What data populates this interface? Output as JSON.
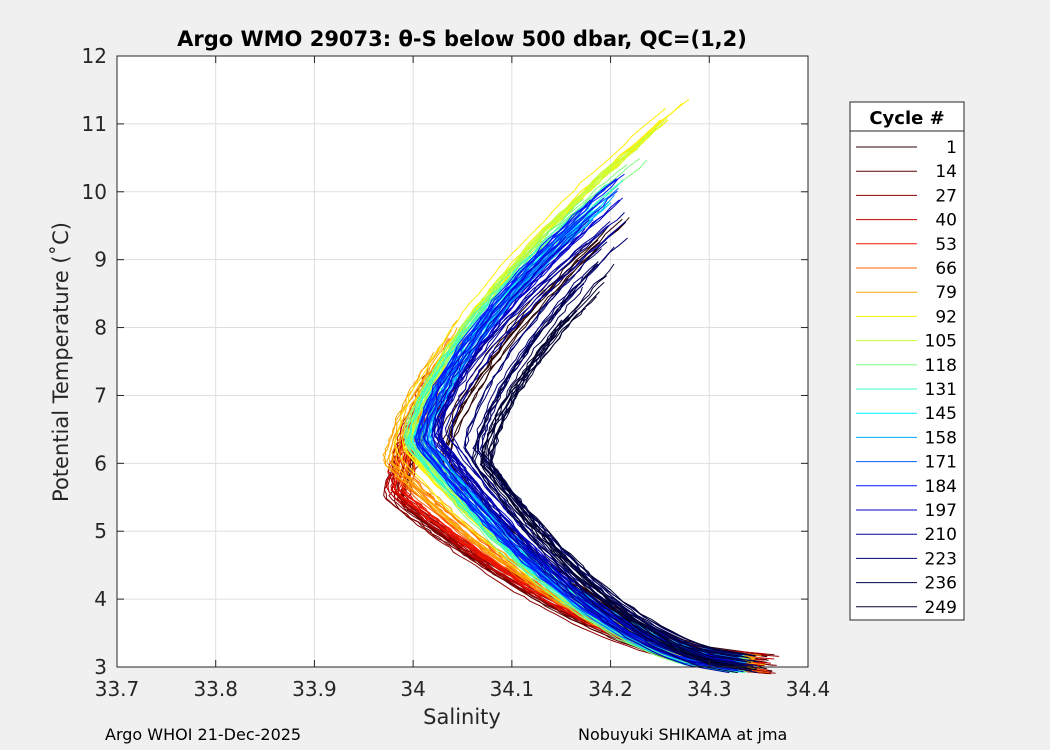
{
  "chart_data": {
    "type": "line",
    "title": "Argo WMO 29073: θ-S below 500 dbar,  QC=(1,2)",
    "xlabel": "Salinity",
    "ylabel": "Potential Temperature (˚C)",
    "xlim": [
      33.7,
      34.4
    ],
    "ylim": [
      3,
      12
    ],
    "x_ticks": [
      "33.7",
      "33.8",
      "33.9",
      "34",
      "34.1",
      "34.2",
      "34.3",
      "34.4"
    ],
    "y_ticks": [
      "3",
      "4",
      "5",
      "6",
      "7",
      "8",
      "9",
      "10",
      "11",
      "12"
    ],
    "grid": true,
    "legend_title": "Cycle #",
    "legend_position": "right",
    "series": [
      {
        "name": "1",
        "color": "#2a0000",
        "profile": {
          "s_deep": 34.36,
          "s_min": 34.03,
          "t_min_s": 6.0,
          "s_warm": 34.22,
          "t_top": 9.7
        }
      },
      {
        "name": "14",
        "color": "#5a0000",
        "profile": {
          "s_deep": 34.36,
          "s_min": 33.99,
          "t_min_s": 5.4,
          "s_warm": 34.05,
          "t_top": 7.4
        }
      },
      {
        "name": "27",
        "color": "#8a0000",
        "profile": {
          "s_deep": 34.36,
          "s_min": 33.98,
          "t_min_s": 5.5,
          "s_warm": 34.03,
          "t_top": 7.2
        }
      },
      {
        "name": "40",
        "color": "#c00000",
        "profile": {
          "s_deep": 34.36,
          "s_min": 33.98,
          "t_min_s": 5.6,
          "s_warm": 34.03,
          "t_top": 7.6
        }
      },
      {
        "name": "53",
        "color": "#f01800",
        "profile": {
          "s_deep": 34.35,
          "s_min": 33.99,
          "t_min_s": 5.6,
          "s_warm": 34.04,
          "t_top": 7.8
        }
      },
      {
        "name": "66",
        "color": "#ff6000",
        "profile": {
          "s_deep": 34.35,
          "s_min": 33.99,
          "t_min_s": 5.8,
          "s_warm": 34.05,
          "t_top": 8.0
        }
      },
      {
        "name": "79",
        "color": "#ffa800",
        "profile": {
          "s_deep": 34.35,
          "s_min": 33.98,
          "t_min_s": 6.0,
          "s_warm": 34.06,
          "t_top": 8.2
        }
      },
      {
        "name": "92",
        "color": "#fff000",
        "profile": {
          "s_deep": 34.34,
          "s_min": 33.99,
          "t_min_s": 6.2,
          "s_warm": 34.28,
          "t_top": 11.4
        }
      },
      {
        "name": "105",
        "color": "#c8ff38",
        "profile": {
          "s_deep": 34.34,
          "s_min": 34.0,
          "t_min_s": 6.3,
          "s_warm": 34.27,
          "t_top": 11.2
        }
      },
      {
        "name": "118",
        "color": "#80ff80",
        "profile": {
          "s_deep": 34.33,
          "s_min": 34.0,
          "t_min_s": 6.3,
          "s_warm": 34.24,
          "t_top": 10.6
        }
      },
      {
        "name": "131",
        "color": "#38ffc8",
        "profile": {
          "s_deep": 34.33,
          "s_min": 34.0,
          "t_min_s": 6.3,
          "s_warm": 34.23,
          "t_top": 10.4
        }
      },
      {
        "name": "145",
        "color": "#00f0ff",
        "profile": {
          "s_deep": 34.33,
          "s_min": 34.01,
          "t_min_s": 6.3,
          "s_warm": 34.22,
          "t_top": 10.2
        }
      },
      {
        "name": "158",
        "color": "#00a8ff",
        "profile": {
          "s_deep": 34.33,
          "s_min": 34.01,
          "t_min_s": 6.3,
          "s_warm": 34.22,
          "t_top": 10.2
        }
      },
      {
        "name": "171",
        "color": "#0060ff",
        "profile": {
          "s_deep": 34.33,
          "s_min": 34.01,
          "t_min_s": 6.3,
          "s_warm": 34.22,
          "t_top": 10.2
        }
      },
      {
        "name": "184",
        "color": "#0018ff",
        "profile": {
          "s_deep": 34.33,
          "s_min": 34.01,
          "t_min_s": 6.3,
          "s_warm": 34.22,
          "t_top": 10.3
        }
      },
      {
        "name": "197",
        "color": "#0000c8",
        "profile": {
          "s_deep": 34.33,
          "s_min": 34.02,
          "t_min_s": 6.4,
          "s_warm": 34.23,
          "t_top": 10.2
        }
      },
      {
        "name": "210",
        "color": "#000098",
        "profile": {
          "s_deep": 34.33,
          "s_min": 34.03,
          "t_min_s": 6.4,
          "s_warm": 34.23,
          "t_top": 9.8
        }
      },
      {
        "name": "223",
        "color": "#000070",
        "profile": {
          "s_deep": 34.34,
          "s_min": 34.06,
          "t_min_s": 6.2,
          "s_warm": 34.22,
          "t_top": 9.5
        }
      },
      {
        "name": "236",
        "color": "#000048",
        "profile": {
          "s_deep": 34.34,
          "s_min": 34.07,
          "t_min_s": 6.0,
          "s_warm": 34.2,
          "t_top": 9.0
        }
      },
      {
        "name": "249",
        "color": "#000030",
        "profile": {
          "s_deep": 34.34,
          "s_min": 34.07,
          "t_min_s": 6.0,
          "s_warm": 34.2,
          "t_top": 8.8
        }
      }
    ]
  },
  "footer": {
    "left": "Argo WHOI 21-Dec-2025",
    "right": "Nobuyuki SHIKAMA at jma"
  }
}
